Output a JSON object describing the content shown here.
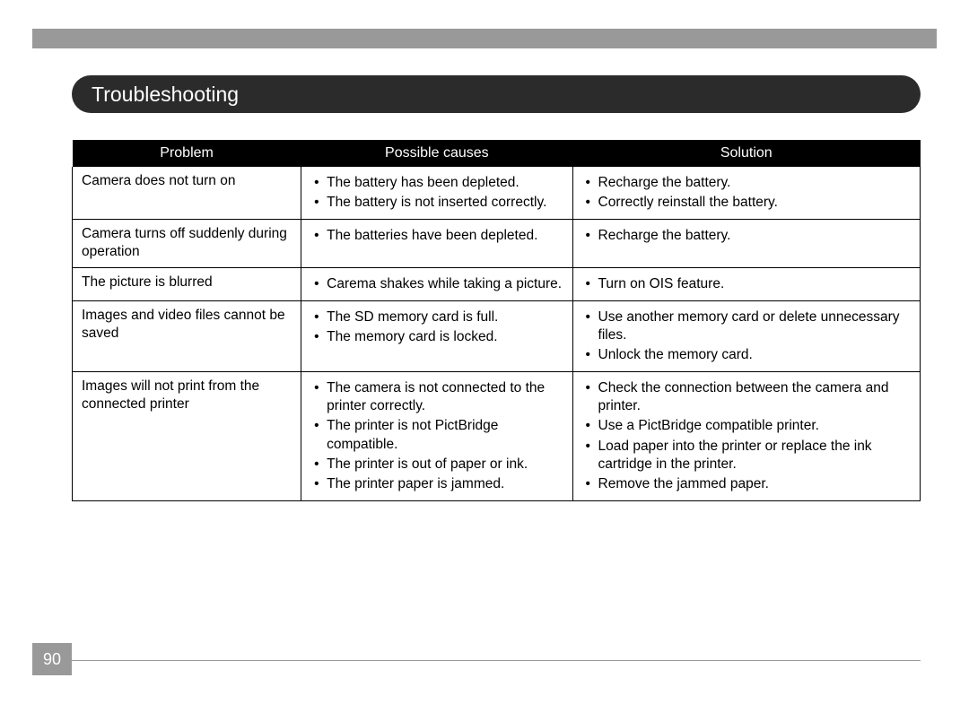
{
  "colors": {
    "top_bar": "#999999",
    "title_bg": "#2b2b2b",
    "title_text": "#ffffff",
    "header_bg": "#000000",
    "header_text": "#ffffff",
    "border": "#000000",
    "body_text": "#000000",
    "footer_line": "#999999",
    "page_box_bg": "#999999"
  },
  "title": "Troubleshooting",
  "page_number": "90",
  "table": {
    "headers": [
      "Problem",
      "Possible causes",
      "Solution"
    ],
    "rows": [
      {
        "problem": "Camera does not turn on",
        "causes": [
          "The battery has been depleted.",
          "The battery is not inserted correctly."
        ],
        "solutions": [
          "Recharge the battery.",
          "Correctly reinstall the battery."
        ]
      },
      {
        "problem": "Camera turns off suddenly during operation",
        "causes": [
          "The batteries have been depleted."
        ],
        "solutions": [
          "Recharge the battery."
        ]
      },
      {
        "problem": "The picture is blurred",
        "causes": [
          "Carema shakes while taking a picture."
        ],
        "solutions": [
          "Turn on OIS feature."
        ]
      },
      {
        "problem": "Images and video files cannot be saved",
        "causes": [
          "The SD memory card is full.",
          "The memory card is locked."
        ],
        "solutions": [
          "Use another memory card or delete unnecessary files.",
          "Unlock the memory card."
        ]
      },
      {
        "problem": "Images will not print from the connected printer",
        "causes": [
          "The camera is not connected to the printer correctly.",
          "The printer is not PictBridge compatible.",
          "The printer is out of paper or ink.",
          "The printer paper is jammed."
        ],
        "solutions": [
          "Check the connection between the camera and printer.",
          "Use a PictBridge compatible printer.",
          "Load paper into the printer or replace the ink cartridge in the printer.",
          "Remove the jammed paper."
        ]
      }
    ]
  }
}
